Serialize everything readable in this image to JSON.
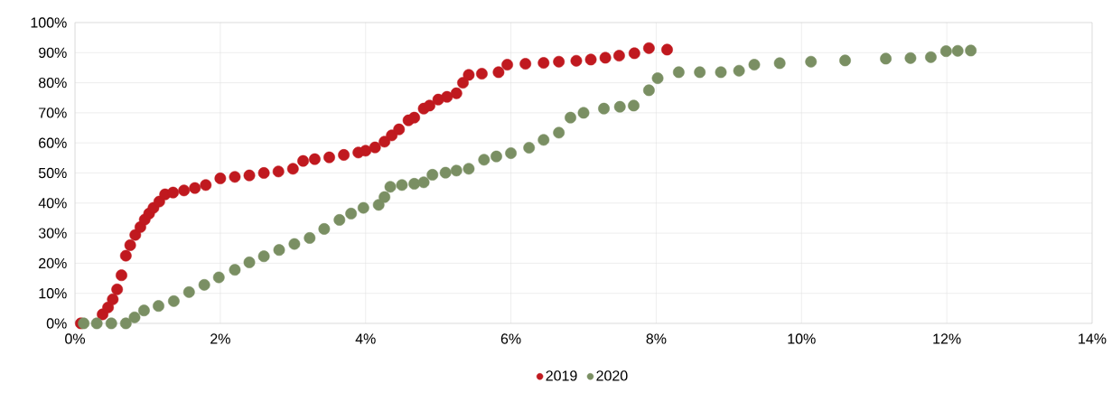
{
  "chart_data": {
    "type": "scatter",
    "marker": "circle",
    "grid": true,
    "legend": "bottom",
    "xlim": [
      0,
      14
    ],
    "ylim": [
      0,
      100
    ],
    "xticks": [
      {
        "value": 0,
        "label": "0%"
      },
      {
        "value": 2,
        "label": "2%"
      },
      {
        "value": 4,
        "label": "4%"
      },
      {
        "value": 6,
        "label": "6%"
      },
      {
        "value": 8,
        "label": "8%"
      },
      {
        "value": 10,
        "label": "10%"
      },
      {
        "value": 12,
        "label": "12%"
      },
      {
        "value": 14,
        "label": "14%"
      }
    ],
    "yticks": [
      {
        "value": 0,
        "label": "0%"
      },
      {
        "value": 10,
        "label": "10%"
      },
      {
        "value": 20,
        "label": "20%"
      },
      {
        "value": 30,
        "label": "30%"
      },
      {
        "value": 40,
        "label": "40%"
      },
      {
        "value": 50,
        "label": "50%"
      },
      {
        "value": 60,
        "label": "60%"
      },
      {
        "value": 70,
        "label": "70%"
      },
      {
        "value": 80,
        "label": "80%"
      },
      {
        "value": 90,
        "label": "90%"
      },
      {
        "value": 100,
        "label": "100%"
      }
    ],
    "series": [
      {
        "name": "2019",
        "color": "#c0191f",
        "x": [
          0.08,
          0.38,
          0.455,
          0.52,
          0.58,
          0.64,
          0.7,
          0.76,
          0.83,
          0.9,
          0.96,
          1.02,
          1.08,
          1.16,
          1.24,
          1.35,
          1.5,
          1.65,
          1.8,
          2.0,
          2.2,
          2.4,
          2.6,
          2.8,
          3.0,
          3.14,
          3.3,
          3.5,
          3.7,
          3.9,
          4.0,
          4.13,
          4.26,
          4.36,
          4.46,
          4.59,
          4.67,
          4.8,
          4.88,
          5.0,
          5.12,
          5.25,
          5.34,
          5.42,
          5.6,
          5.83,
          5.95,
          6.2,
          6.45,
          6.66,
          6.9,
          7.1,
          7.3,
          7.49,
          7.7,
          7.9,
          8.15
        ],
        "values": [
          0,
          3,
          5.3,
          8,
          11.3,
          16,
          22.5,
          26,
          29.4,
          32,
          34.5,
          36.5,
          38.4,
          40.5,
          42.9,
          43.5,
          44.2,
          45,
          46,
          48.2,
          48.7,
          49.2,
          50,
          50.5,
          51.4,
          54,
          54.6,
          55.2,
          56,
          56.8,
          57.4,
          58.5,
          60.4,
          62.5,
          64.5,
          67.5,
          68.4,
          71.4,
          72.4,
          74.4,
          75.3,
          76.5,
          80,
          82.6,
          83,
          83.5,
          86,
          86.3,
          86.6,
          87,
          87.3,
          87.7,
          88.3,
          89,
          89.8,
          91.5,
          91
        ]
      },
      {
        "name": "2020",
        "color": "#7a8f63",
        "x": [
          0.12,
          0.3,
          0.5,
          0.7,
          0.82,
          0.95,
          1.15,
          1.36,
          1.57,
          1.78,
          1.98,
          2.2,
          2.4,
          2.6,
          2.81,
          3.02,
          3.23,
          3.43,
          3.64,
          3.8,
          3.97,
          4.18,
          4.26,
          4.34,
          4.5,
          4.67,
          4.8,
          4.92,
          5.1,
          5.25,
          5.42,
          5.63,
          5.8,
          6.0,
          6.25,
          6.45,
          6.66,
          6.82,
          7.0,
          7.28,
          7.5,
          7.69,
          7.9,
          8.02,
          8.31,
          8.6,
          8.89,
          9.14,
          9.35,
          9.7,
          10.13,
          10.6,
          11.16,
          11.5,
          11.78,
          11.99,
          12.15,
          12.33
        ],
        "values": [
          0,
          0,
          0,
          0,
          2,
          4.3,
          5.8,
          7.4,
          10.4,
          12.8,
          15.3,
          17.8,
          20.3,
          22.3,
          24.4,
          26.4,
          28.4,
          31.4,
          34.4,
          36.5,
          38.4,
          39.4,
          42,
          45.4,
          46,
          46.4,
          46.9,
          49.4,
          50.1,
          50.8,
          51.4,
          54.4,
          55.5,
          56.6,
          58.4,
          61,
          63.4,
          68.4,
          70,
          71.4,
          72,
          72.4,
          77.5,
          81.5,
          83.5,
          83.5,
          83.5,
          84,
          86,
          86.5,
          87,
          87.4,
          88,
          88.2,
          88.5,
          90.5,
          90.6,
          90.7
        ]
      }
    ]
  }
}
